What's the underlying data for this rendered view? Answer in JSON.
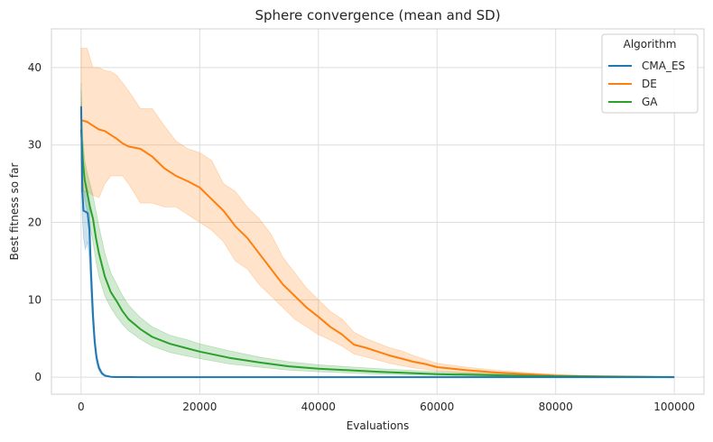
{
  "chart_data": {
    "type": "line",
    "title": "Sphere convergence (mean and SD)",
    "xlabel": "Evaluations",
    "ylabel": "Best fitness so far",
    "xlim": [
      -5000,
      105000
    ],
    "ylim": [
      -2.2,
      45
    ],
    "xticks": [
      0,
      20000,
      40000,
      60000,
      80000,
      100000
    ],
    "xtick_labels": [
      "0",
      "20000",
      "40000",
      "60000",
      "80000",
      "100000"
    ],
    "yticks": [
      0,
      10,
      20,
      30,
      40
    ],
    "ytick_labels": [
      "0",
      "10",
      "20",
      "30",
      "40"
    ],
    "grid": true,
    "legend": {
      "title": "Algorithm",
      "placement": "top-right"
    },
    "series": [
      {
        "name": "CMA_ES",
        "color": "#1f77b4",
        "x": [
          0,
          200,
          400,
          700,
          1100,
          1400,
          1700,
          2000,
          2300,
          2600,
          3000,
          3500,
          4000,
          5000,
          6000,
          8000,
          10000,
          20000,
          40000,
          60000,
          80000,
          100000
        ],
        "mean": [
          35,
          24,
          21.5,
          21.4,
          21.2,
          19,
          13,
          8,
          4.5,
          2.5,
          1.2,
          0.5,
          0.2,
          0.05,
          0.02,
          0.01,
          0.0,
          0.0,
          0.0,
          0.0,
          0.0,
          0.0
        ],
        "lower": [
          30,
          21,
          18,
          16.5,
          17.5,
          15,
          10,
          6,
          3.5,
          1.8,
          0.8,
          0.3,
          0.1,
          0.02,
          0.0,
          0.0,
          0.0,
          0.0,
          0.0,
          0.0,
          0.0,
          0.0
        ],
        "upper": [
          38,
          27,
          24,
          24,
          24,
          22,
          16,
          10,
          5.5,
          3.2,
          1.6,
          0.7,
          0.3,
          0.08,
          0.04,
          0.02,
          0.0,
          0.0,
          0.0,
          0.0,
          0.0,
          0.0
        ]
      },
      {
        "name": "DE",
        "color": "#ff7f0e",
        "x": [
          0,
          1000,
          2000,
          3000,
          4000,
          5000,
          6000,
          7000,
          8000,
          10000,
          12000,
          14000,
          16000,
          18000,
          20000,
          22000,
          24000,
          26000,
          28000,
          30000,
          32000,
          34000,
          36000,
          38000,
          40000,
          42000,
          44000,
          46000,
          48000,
          50000,
          52000,
          54000,
          56000,
          58000,
          60000,
          65000,
          70000,
          75000,
          80000,
          85000,
          90000,
          95000,
          100000
        ],
        "mean": [
          33.2,
          33.0,
          32.5,
          32.0,
          31.8,
          31.3,
          30.8,
          30.2,
          29.8,
          29.5,
          28.5,
          27.0,
          26.0,
          25.3,
          24.5,
          23.0,
          21.5,
          19.5,
          18.0,
          16.0,
          14.0,
          12.0,
          10.5,
          9.0,
          7.8,
          6.5,
          5.5,
          4.2,
          3.8,
          3.3,
          2.8,
          2.4,
          2.0,
          1.7,
          1.3,
          0.9,
          0.6,
          0.4,
          0.2,
          0.12,
          0.08,
          0.04,
          0.0
        ],
        "lower": [
          24.0,
          24.0,
          23.5,
          23.2,
          25.0,
          26.0,
          26.0,
          26.0,
          25.0,
          22.5,
          22.5,
          22.0,
          22.0,
          21.0,
          20.0,
          19.0,
          17.5,
          15.0,
          14.0,
          12.0,
          10.5,
          9.0,
          7.5,
          6.5,
          5.5,
          4.8,
          4.0,
          3.0,
          2.6,
          2.2,
          1.8,
          1.5,
          1.2,
          1.0,
          0.8,
          0.5,
          0.3,
          0.2,
          0.1,
          0.05,
          0.02,
          0.0,
          0.0
        ],
        "upper": [
          42.5,
          42.5,
          40.0,
          40.0,
          39.6,
          39.5,
          39.0,
          38.0,
          37.0,
          34.7,
          34.7,
          32.5,
          30.5,
          29.5,
          29.0,
          28.0,
          25.0,
          24.0,
          22.0,
          20.5,
          18.5,
          15.5,
          13.5,
          11.5,
          10.0,
          8.5,
          7.5,
          5.8,
          5.0,
          4.4,
          3.8,
          3.4,
          2.8,
          2.3,
          1.8,
          1.3,
          0.9,
          0.6,
          0.35,
          0.2,
          0.12,
          0.06,
          0.0
        ]
      },
      {
        "name": "GA",
        "color": "#2ca02c",
        "x": [
          0,
          300,
          600,
          1000,
          1500,
          2000,
          2500,
          3000,
          4000,
          5000,
          6000,
          7000,
          8000,
          10000,
          12000,
          15000,
          18000,
          20000,
          25000,
          30000,
          35000,
          40000,
          50000,
          60000,
          70000,
          80000,
          90000,
          100000
        ],
        "mean": [
          32,
          28,
          25.5,
          24,
          22,
          20.5,
          18,
          16,
          13,
          11,
          9.8,
          8.5,
          7.5,
          6.2,
          5.2,
          4.3,
          3.7,
          3.3,
          2.5,
          1.9,
          1.4,
          1.1,
          0.7,
          0.4,
          0.25,
          0.12,
          0.06,
          0.02
        ],
        "lower": [
          28,
          25,
          23,
          21.5,
          19.5,
          17.5,
          15,
          13,
          10.5,
          9,
          7.8,
          6.8,
          6,
          4.9,
          4.0,
          3.2,
          2.7,
          2.4,
          1.7,
          1.3,
          0.9,
          0.7,
          0.4,
          0.2,
          0.1,
          0.04,
          0.0,
          0.0
        ],
        "upper": [
          37,
          31,
          28,
          26.5,
          25,
          23.5,
          21.5,
          19.5,
          16,
          13.5,
          12,
          10.5,
          9.3,
          7.7,
          6.5,
          5.4,
          4.8,
          4.3,
          3.4,
          2.6,
          2.0,
          1.6,
          1.1,
          0.7,
          0.45,
          0.25,
          0.12,
          0.05
        ]
      }
    ]
  }
}
